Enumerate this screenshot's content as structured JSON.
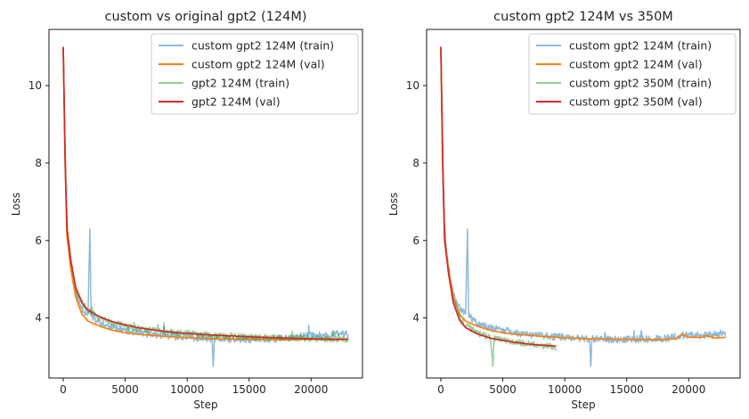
{
  "chart_data": [
    {
      "type": "line",
      "title": "custom vs original gpt2 (124M)",
      "xlabel": "Step",
      "ylabel": "Loss",
      "xlim": [
        -1150,
        24150
      ],
      "ylim": [
        2.45,
        11.45
      ],
      "xticks": [
        0,
        5000,
        10000,
        15000,
        20000
      ],
      "yticks": [
        4,
        6,
        8,
        10
      ],
      "grid": false,
      "legend_position": "top-right",
      "series": [
        {
          "name": "custom gpt2 124M (train)",
          "color": "#1f77b4",
          "alpha": 0.5,
          "points": [
            [
              0,
              11.0
            ],
            [
              100,
              9.2
            ],
            [
              200,
              7.5
            ],
            [
              300,
              6.3
            ],
            [
              500,
              5.6
            ],
            [
              800,
              4.9
            ],
            [
              1200,
              4.45
            ],
            [
              1600,
              4.2
            ],
            [
              2000,
              4.1
            ],
            [
              2150,
              6.3
            ],
            [
              2250,
              4.05
            ],
            [
              2600,
              3.95
            ],
            [
              3000,
              3.85
            ],
            [
              4000,
              3.75
            ],
            [
              5000,
              3.68
            ],
            [
              6000,
              3.62
            ],
            [
              7000,
              3.58
            ],
            [
              8000,
              3.55
            ],
            [
              9000,
              3.52
            ],
            [
              10000,
              3.5
            ],
            [
              11000,
              3.48
            ],
            [
              12000,
              3.46
            ],
            [
              12100,
              2.75
            ],
            [
              12200,
              3.46
            ],
            [
              14000,
              3.44
            ],
            [
              16000,
              3.45
            ],
            [
              18000,
              3.47
            ],
            [
              19500,
              3.55
            ],
            [
              20000,
              3.55
            ],
            [
              21000,
              3.55
            ],
            [
              22000,
              3.58
            ],
            [
              22800,
              3.6
            ],
            [
              23000,
              3.55
            ]
          ],
          "noise": 0.09
        },
        {
          "name": "custom gpt2 124M (val)",
          "color": "#ff7f0e",
          "alpha": 1,
          "points": [
            [
              0,
              11.0
            ],
            [
              150,
              8.0
            ],
            [
              300,
              6.1
            ],
            [
              600,
              5.3
            ],
            [
              1000,
              4.55
            ],
            [
              1500,
              4.1
            ],
            [
              2000,
              3.92
            ],
            [
              3000,
              3.78
            ],
            [
              4000,
              3.68
            ],
            [
              5000,
              3.62
            ],
            [
              6000,
              3.58
            ],
            [
              8000,
              3.53
            ],
            [
              10000,
              3.49
            ],
            [
              12000,
              3.46
            ],
            [
              14000,
              3.45
            ],
            [
              16000,
              3.44
            ],
            [
              18000,
              3.44
            ],
            [
              20000,
              3.45
            ],
            [
              22000,
              3.44
            ],
            [
              23000,
              3.45
            ]
          ],
          "noise": 0
        },
        {
          "name": "gpt2 124M (train)",
          "color": "#2ca02c",
          "alpha": 0.5,
          "points": [
            [
              0,
              11.0
            ],
            [
              100,
              9.0
            ],
            [
              200,
              7.3
            ],
            [
              400,
              6.1
            ],
            [
              700,
              5.3
            ],
            [
              1000,
              4.75
            ],
            [
              1500,
              4.4
            ],
            [
              2000,
              4.2
            ],
            [
              3000,
              4.0
            ],
            [
              4000,
              3.88
            ],
            [
              5000,
              3.8
            ],
            [
              6000,
              3.74
            ],
            [
              8000,
              3.65
            ],
            [
              10000,
              3.6
            ],
            [
              12000,
              3.55
            ],
            [
              14000,
              3.52
            ],
            [
              16000,
              3.5
            ],
            [
              18000,
              3.48
            ],
            [
              20000,
              3.47
            ],
            [
              22000,
              3.45
            ],
            [
              23000,
              3.44
            ]
          ],
          "noise": 0.08
        },
        {
          "name": "gpt2 124M (val)",
          "color": "#d62728",
          "alpha": 1,
          "points": [
            [
              0,
              11.0
            ],
            [
              150,
              8.2
            ],
            [
              300,
              6.3
            ],
            [
              600,
              5.5
            ],
            [
              1000,
              4.8
            ],
            [
              1500,
              4.4
            ],
            [
              2000,
              4.2
            ],
            [
              3000,
              4.02
            ],
            [
              4000,
              3.9
            ],
            [
              5000,
              3.82
            ],
            [
              6000,
              3.75
            ],
            [
              8000,
              3.66
            ],
            [
              10000,
              3.6
            ],
            [
              12000,
              3.56
            ],
            [
              14000,
              3.53
            ],
            [
              16000,
              3.5
            ],
            [
              18000,
              3.48
            ],
            [
              20000,
              3.46
            ],
            [
              22000,
              3.45
            ],
            [
              23000,
              3.45
            ]
          ],
          "noise": 0
        }
      ]
    },
    {
      "type": "line",
      "title": "custom gpt2 124M vs 350M",
      "xlabel": "Step",
      "ylabel": "Loss",
      "xlim": [
        -1150,
        24150
      ],
      "ylim": [
        2.45,
        11.45
      ],
      "xticks": [
        0,
        5000,
        10000,
        15000,
        20000
      ],
      "yticks": [
        4,
        6,
        8,
        10
      ],
      "grid": false,
      "legend_position": "top-right",
      "series": [
        {
          "name": "custom gpt2 124M (train)",
          "color": "#1f77b4",
          "alpha": 0.5,
          "points": [
            [
              0,
              11.0
            ],
            [
              100,
              9.2
            ],
            [
              200,
              7.5
            ],
            [
              300,
              6.3
            ],
            [
              500,
              5.6
            ],
            [
              800,
              4.9
            ],
            [
              1200,
              4.45
            ],
            [
              1600,
              4.2
            ],
            [
              2000,
              4.1
            ],
            [
              2150,
              6.3
            ],
            [
              2250,
              4.05
            ],
            [
              2600,
              3.95
            ],
            [
              3000,
              3.85
            ],
            [
              4000,
              3.75
            ],
            [
              5000,
              3.68
            ],
            [
              6000,
              3.62
            ],
            [
              7000,
              3.58
            ],
            [
              8000,
              3.55
            ],
            [
              9000,
              3.52
            ],
            [
              10000,
              3.5
            ],
            [
              11000,
              3.48
            ],
            [
              12000,
              3.46
            ],
            [
              12100,
              2.75
            ],
            [
              12200,
              3.46
            ],
            [
              14000,
              3.44
            ],
            [
              16000,
              3.45
            ],
            [
              18000,
              3.47
            ],
            [
              19500,
              3.55
            ],
            [
              20000,
              3.55
            ],
            [
              21000,
              3.55
            ],
            [
              22000,
              3.58
            ],
            [
              22800,
              3.6
            ],
            [
              23000,
              3.55
            ]
          ],
          "noise": 0.09
        },
        {
          "name": "custom gpt2 124M (val)",
          "color": "#ff7f0e",
          "alpha": 1,
          "points": [
            [
              0,
              11.0
            ],
            [
              150,
              8.0
            ],
            [
              300,
              6.1
            ],
            [
              600,
              5.3
            ],
            [
              1000,
              4.55
            ],
            [
              1500,
              4.1
            ],
            [
              2000,
              3.92
            ],
            [
              3000,
              3.78
            ],
            [
              4000,
              3.68
            ],
            [
              5000,
              3.62
            ],
            [
              6000,
              3.58
            ],
            [
              8000,
              3.53
            ],
            [
              10000,
              3.49
            ],
            [
              12000,
              3.46
            ],
            [
              14000,
              3.45
            ],
            [
              16000,
              3.44
            ],
            [
              18000,
              3.44
            ],
            [
              19000,
              3.47
            ],
            [
              19500,
              3.58
            ],
            [
              20000,
              3.5
            ],
            [
              21000,
              3.5
            ],
            [
              21500,
              3.55
            ],
            [
              22000,
              3.48
            ],
            [
              23000,
              3.5
            ]
          ],
          "noise": 0
        },
        {
          "name": "custom gpt2 350M (train)",
          "color": "#2ca02c",
          "alpha": 0.5,
          "points": [
            [
              0,
              11.0
            ],
            [
              100,
              8.8
            ],
            [
              200,
              7.0
            ],
            [
              400,
              5.8
            ],
            [
              700,
              5.0
            ],
            [
              1000,
              4.45
            ],
            [
              1500,
              4.0
            ],
            [
              2000,
              3.8
            ],
            [
              3000,
              3.6
            ],
            [
              4000,
              3.5
            ],
            [
              4200,
              2.75
            ],
            [
              4300,
              3.48
            ],
            [
              5000,
              3.43
            ],
            [
              6000,
              3.38
            ],
            [
              7000,
              3.33
            ],
            [
              8000,
              3.3
            ],
            [
              9000,
              3.26
            ],
            [
              9300,
              3.15
            ]
          ],
          "noise": 0.08
        },
        {
          "name": "custom gpt2 350M (val)",
          "color": "#d62728",
          "alpha": 1,
          "points": [
            [
              0,
              11.0
            ],
            [
              150,
              8.0
            ],
            [
              300,
              6.0
            ],
            [
              600,
              5.2
            ],
            [
              1000,
              4.4
            ],
            [
              1500,
              3.95
            ],
            [
              2000,
              3.75
            ],
            [
              3000,
              3.58
            ],
            [
              4000,
              3.48
            ],
            [
              5000,
              3.42
            ],
            [
              6000,
              3.37
            ],
            [
              7000,
              3.33
            ],
            [
              8000,
              3.3
            ],
            [
              9000,
              3.28
            ],
            [
              9300,
              3.27
            ]
          ],
          "noise": 0
        }
      ]
    }
  ]
}
